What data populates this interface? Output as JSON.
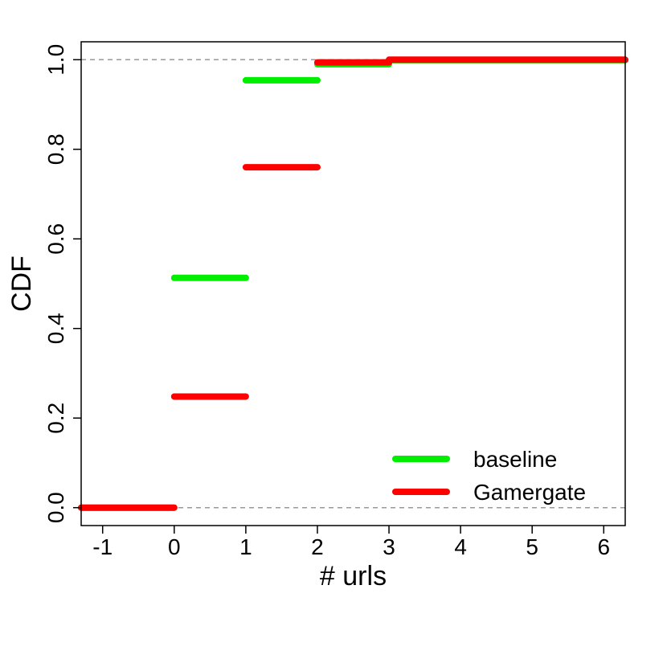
{
  "chart_data": {
    "type": "line",
    "xlabel": "# urls",
    "ylabel": "CDF",
    "xlim": [
      -1.3,
      6.3
    ],
    "ylim": [
      -0.04,
      1.04
    ],
    "x_ticks": [
      -1,
      0,
      1,
      2,
      3,
      4,
      5,
      6
    ],
    "x_tick_labels": [
      "-1",
      "0",
      "1",
      "2",
      "3",
      "4",
      "5",
      "6"
    ],
    "y_ticks": [
      0.0,
      0.2,
      0.4,
      0.6,
      0.8,
      1.0
    ],
    "y_tick_labels": [
      "0.0",
      "0.2",
      "0.4",
      "0.6",
      "0.8",
      "1.0"
    ],
    "reference_lines": [
      0.0,
      1.0
    ],
    "legend_position": "bottom-right",
    "series": [
      {
        "name": "baseline",
        "color": "#00ee00",
        "steps": [
          {
            "x0": -1.3,
            "x1": 0,
            "y": 0.0
          },
          {
            "x0": 0,
            "x1": 1,
            "y": 0.513
          },
          {
            "x0": 1,
            "x1": 2,
            "y": 0.954
          },
          {
            "x0": 2,
            "x1": 3,
            "y": 0.99
          },
          {
            "x0": 3,
            "x1": 6.3,
            "y": 0.999
          }
        ]
      },
      {
        "name": "Gamergate",
        "color": "#ff0000",
        "steps": [
          {
            "x0": -1.3,
            "x1": 0,
            "y": 0.0
          },
          {
            "x0": 0,
            "x1": 1,
            "y": 0.248
          },
          {
            "x0": 1,
            "x1": 2,
            "y": 0.76
          },
          {
            "x0": 2,
            "x1": 3,
            "y": 0.994
          },
          {
            "x0": 3,
            "x1": 6.3,
            "y": 1.0
          }
        ]
      }
    ]
  }
}
